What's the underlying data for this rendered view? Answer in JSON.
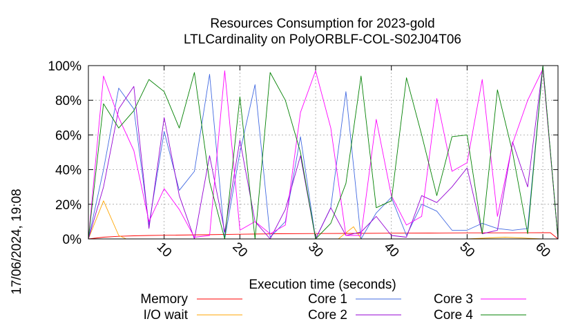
{
  "chart_data": {
    "type": "line",
    "title": [
      "Resources Consumption for 2023-gold",
      "LTLCardinality on PolyORBLF-COL-S02J04T06"
    ],
    "xlabel": "Execution time (seconds)",
    "ylabel": "",
    "side_label": "17/06/2024, 19:08",
    "xlim": [
      0,
      62
    ],
    "ylim": [
      0,
      100
    ],
    "xticks": [
      10,
      20,
      30,
      40,
      50,
      60
    ],
    "yticks": [
      0,
      20,
      40,
      60,
      80,
      100
    ],
    "ytick_labels": [
      "0%",
      "20%",
      "40%",
      "60%",
      "80%",
      "100%"
    ],
    "grid": true,
    "legend_position": "bottom",
    "series": [
      {
        "name": "Memory",
        "color": "#ff0000",
        "x": [
          0,
          2,
          4,
          6,
          8,
          10,
          15,
          20,
          25,
          30,
          35,
          40,
          45,
          50,
          55,
          60,
          61,
          62
        ],
        "y": [
          0,
          1,
          1.5,
          1.8,
          2,
          2.1,
          2.4,
          2.7,
          3,
          3.1,
          3.2,
          3.3,
          3.4,
          3.5,
          3.5,
          3.6,
          3.6,
          0
        ]
      },
      {
        "name": "I/O wait",
        "color": "#ffa500",
        "x": [
          0,
          2,
          4,
          5,
          10,
          20,
          30,
          33,
          35,
          36,
          40,
          50,
          55,
          60,
          62
        ],
        "y": [
          0,
          22,
          2,
          0,
          0,
          0,
          0,
          0,
          7,
          0,
          0,
          0,
          1,
          0,
          0
        ]
      },
      {
        "name": "Core 1",
        "color": "#4169e1",
        "x": [
          0,
          2,
          4,
          6,
          8,
          10,
          12,
          14,
          16,
          18,
          20,
          22,
          24,
          26,
          28,
          30,
          32,
          34,
          36,
          38,
          40,
          42,
          44,
          46,
          48,
          50,
          52,
          54,
          56,
          58,
          60,
          62
        ],
        "y": [
          0,
          40,
          87,
          75,
          8,
          62,
          28,
          39,
          95,
          0,
          50,
          89,
          1,
          10,
          59,
          0,
          18,
          85,
          0,
          15,
          24,
          2,
          20,
          16,
          5,
          5,
          9,
          6,
          5,
          6,
          100,
          0
        ]
      },
      {
        "name": "Core 2",
        "color": "#9400d3",
        "x": [
          0,
          2,
          4,
          6,
          8,
          10,
          12,
          14,
          16,
          18,
          20,
          22,
          24,
          26,
          28,
          30,
          32,
          34,
          36,
          38,
          40,
          42,
          44,
          46,
          48,
          50,
          52,
          54,
          56,
          58,
          60,
          62
        ],
        "y": [
          0,
          30,
          75,
          88,
          6,
          70,
          25,
          0,
          48,
          4,
          57,
          10,
          0,
          17,
          48,
          0,
          18,
          2,
          4,
          13,
          2,
          1,
          25,
          21,
          30,
          41,
          3,
          5,
          56,
          30,
          100,
          0
        ]
      },
      {
        "name": "Core 3",
        "color": "#ff00ff",
        "x": [
          0,
          2,
          4,
          6,
          8,
          10,
          12,
          14,
          16,
          18,
          20,
          22,
          24,
          26,
          28,
          30,
          32,
          34,
          36,
          38,
          40,
          42,
          44,
          46,
          48,
          50,
          52,
          54,
          56,
          58,
          60,
          62
        ],
        "y": [
          0,
          94,
          70,
          51,
          10,
          29,
          17,
          1,
          2,
          97,
          5,
          10,
          3,
          8,
          73,
          97,
          64,
          2,
          2,
          69,
          25,
          8,
          13,
          81,
          39,
          44,
          92,
          13,
          55,
          80,
          98,
          0
        ]
      },
      {
        "name": "Core 4",
        "color": "#008000",
        "x": [
          0,
          2,
          4,
          6,
          8,
          10,
          12,
          14,
          16,
          18,
          20,
          22,
          24,
          26,
          28,
          30,
          32,
          34,
          36,
          38,
          40,
          42,
          44,
          46,
          48,
          50,
          52,
          54,
          56,
          58,
          60,
          62
        ],
        "y": [
          0,
          78,
          64,
          74,
          92,
          85,
          64,
          96,
          33,
          0,
          82,
          0,
          96,
          80,
          50,
          0,
          9,
          32,
          94,
          18,
          22,
          93,
          60,
          25,
          59,
          60,
          3,
          86,
          50,
          3,
          100,
          0
        ]
      }
    ]
  }
}
